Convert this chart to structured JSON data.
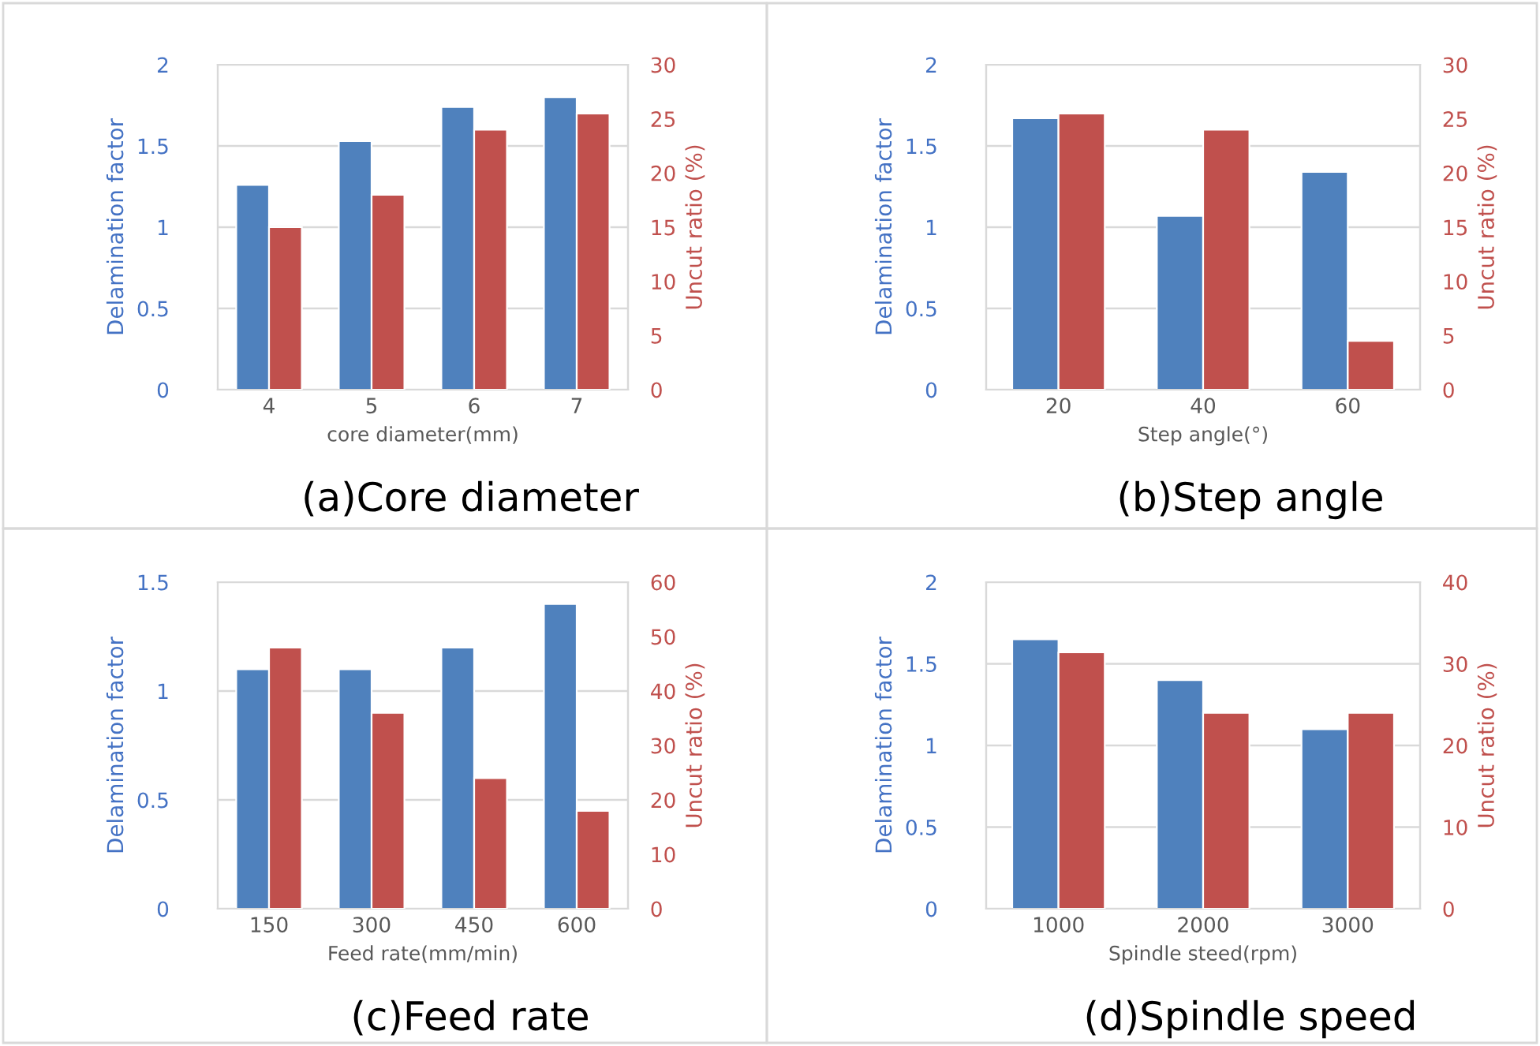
{
  "chart_data": [
    {
      "type": "bar",
      "categories": [
        "4",
        "5",
        "6",
        "7"
      ],
      "xlabel": "core diameter(mm)",
      "ylabel": "Delamination factor",
      "y2label": "Uncut ratio (%)",
      "annotations": [
        "(a)Core diameter"
      ],
      "series": [
        {
          "color": "#4f81bd",
          "values": [
            1.26,
            1.53,
            1.74,
            1.8
          ]
        },
        {
          "color": "#c0504d",
          "values": [
            15,
            18,
            24,
            25.5
          ],
          "axis": "y2"
        }
      ],
      "ylim": [
        0,
        2
      ],
      "yticks": [
        0,
        0.5,
        1,
        1.5,
        2
      ],
      "y2lim": [
        0,
        30
      ],
      "y2ticks": [
        0,
        5,
        10,
        15,
        20,
        25,
        30
      ],
      "grid": "y"
    },
    {
      "type": "bar",
      "categories": [
        "20",
        "40",
        "60"
      ],
      "xlabel": "Step angle(°)",
      "ylabel": "Delamination factor",
      "y2label": "Uncut ratio (%)",
      "annotations": [
        "(b)Step angle"
      ],
      "series": [
        {
          "color": "#4f81bd",
          "values": [
            1.67,
            1.07,
            1.34
          ]
        },
        {
          "color": "#c0504d",
          "values": [
            25.5,
            24,
            4.5
          ],
          "axis": "y2"
        }
      ],
      "ylim": [
        0,
        2
      ],
      "yticks": [
        0,
        0.5,
        1,
        1.5,
        2
      ],
      "y2lim": [
        0,
        30
      ],
      "y2ticks": [
        0,
        5,
        10,
        15,
        20,
        25,
        30
      ],
      "grid": "y"
    },
    {
      "type": "bar",
      "categories": [
        "150",
        "300",
        "450",
        "600"
      ],
      "xlabel": "Feed rate(mm/min)",
      "ylabel": "Delamination factor",
      "y2label": "Uncut ratio (%)",
      "annotations": [
        "(c)Feed rate"
      ],
      "series": [
        {
          "color": "#4f81bd",
          "values": [
            1.1,
            1.1,
            1.2,
            1.4
          ]
        },
        {
          "color": "#c0504d",
          "values": [
            48,
            36,
            24,
            18
          ],
          "axis": "y2"
        }
      ],
      "ylim": [
        0,
        1.5
      ],
      "yticks": [
        0,
        0.5,
        1,
        1.5
      ],
      "y2lim": [
        0,
        60
      ],
      "y2ticks": [
        0,
        10,
        20,
        30,
        40,
        50,
        60
      ],
      "grid": "y"
    },
    {
      "type": "bar",
      "categories": [
        "1000",
        "2000",
        "3000"
      ],
      "xlabel": "Spindle steed(rpm)",
      "ylabel": "Delamination factor",
      "y2label": "Uncut ratio (%)",
      "annotations": [
        "(d)Spindle speed"
      ],
      "series": [
        {
          "color": "#4f81bd",
          "values": [
            1.65,
            1.4,
            1.1
          ]
        },
        {
          "color": "#c0504d",
          "values": [
            31.4,
            24,
            24
          ],
          "axis": "y2"
        }
      ],
      "ylim": [
        0,
        2
      ],
      "yticks": [
        0,
        0.5,
        1,
        1.5,
        2
      ],
      "y2lim": [
        0,
        40
      ],
      "y2ticks": [
        0,
        10,
        20,
        30,
        40
      ],
      "grid": "y"
    }
  ]
}
